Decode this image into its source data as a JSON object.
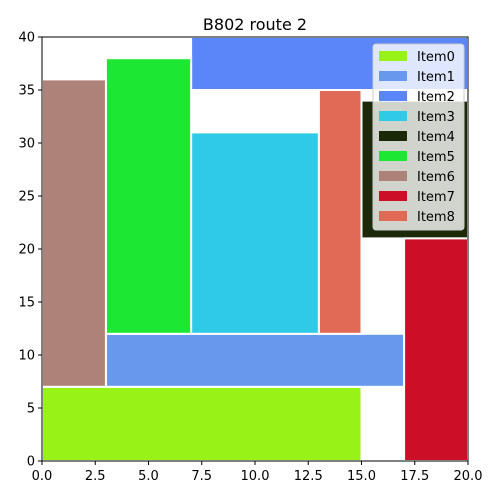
{
  "chart_data": {
    "type": "rectangles",
    "title": "B802 route 2",
    "xlabel": "",
    "ylabel": "",
    "xlim": [
      0,
      20
    ],
    "ylim": [
      0,
      40
    ],
    "xticks": [
      "0.0",
      "2.5",
      "5.0",
      "7.5",
      "10.0",
      "12.5",
      "15.0",
      "17.5",
      "20.0"
    ],
    "yticks": [
      "0",
      "5",
      "10",
      "15",
      "20",
      "25",
      "30",
      "35",
      "40"
    ],
    "grid": false,
    "legend_position": "top-right",
    "items": [
      {
        "name": "Item0",
        "color": "#99f216",
        "x0": 0,
        "x1": 15,
        "y0": 0,
        "y1": 7
      },
      {
        "name": "Item1",
        "color": "#6699ee",
        "x0": 3,
        "x1": 17,
        "y0": 7,
        "y1": 12
      },
      {
        "name": "Item2",
        "color": "#5b86fa",
        "x0": 7,
        "x1": 20,
        "y0": 35,
        "y1": 40
      },
      {
        "name": "Item3",
        "color": "#2ecae6",
        "x0": 7,
        "x1": 13,
        "y0": 12,
        "y1": 31
      },
      {
        "name": "Item4",
        "color": "#1c2909",
        "x0": 15,
        "x1": 20,
        "y0": 21,
        "y1": 34
      },
      {
        "name": "Item5",
        "color": "#1ce833",
        "x0": 3,
        "x1": 7,
        "y0": 12,
        "y1": 38
      },
      {
        "name": "Item6",
        "color": "#ad8379",
        "x0": 0,
        "x1": 3,
        "y0": 7,
        "y1": 36
      },
      {
        "name": "Item7",
        "color": "#cc0e27",
        "x0": 17,
        "x1": 20,
        "y0": 0,
        "y1": 21
      },
      {
        "name": "Item8",
        "color": "#e06a55",
        "x0": 13,
        "x1": 15,
        "y0": 12,
        "y1": 35
      }
    ]
  }
}
